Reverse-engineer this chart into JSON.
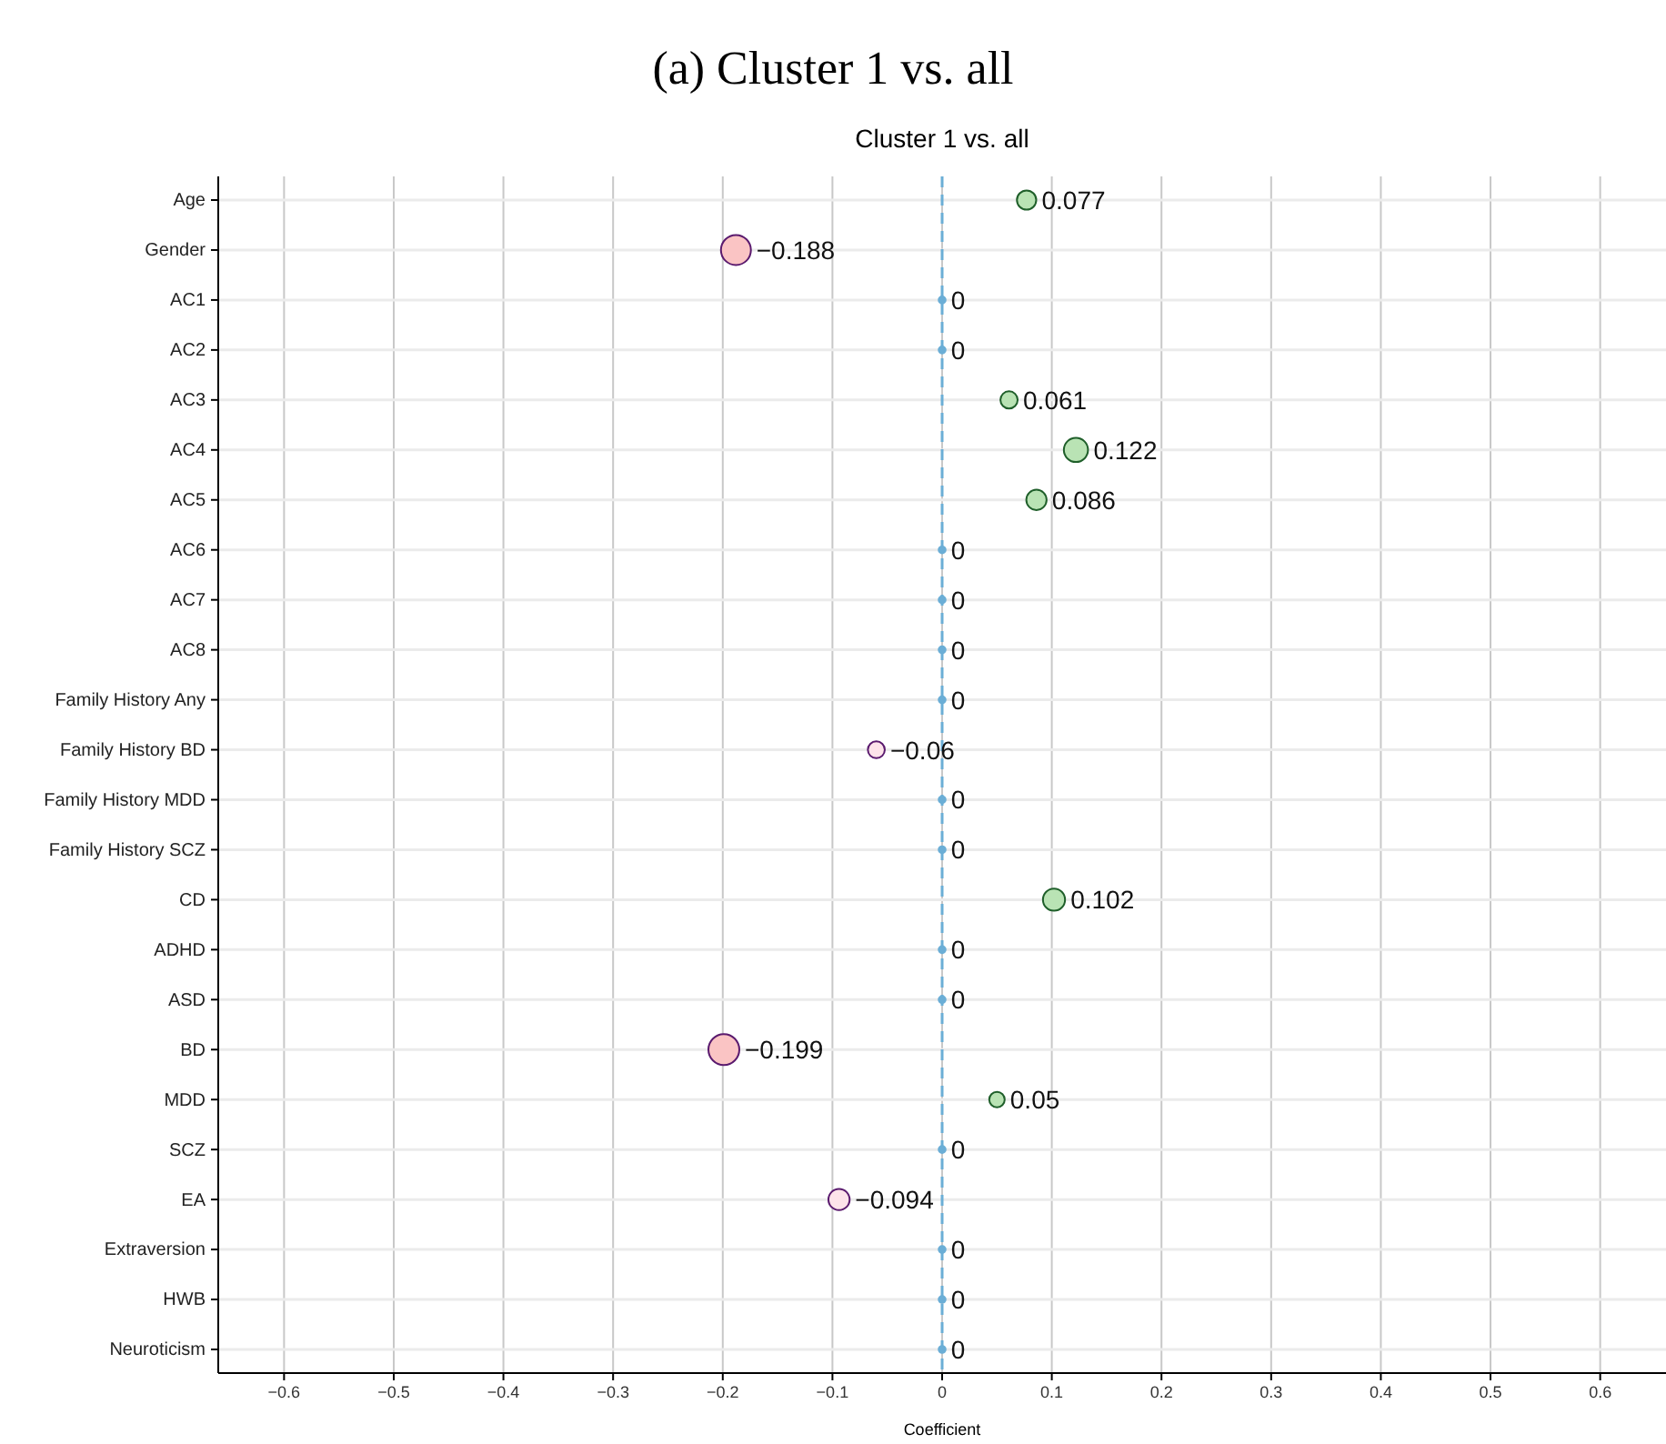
{
  "chart_data": {
    "type": "bubble",
    "orientation": "horizontal",
    "title": "(a) Cluster 1 vs. all",
    "subtitle": "Cluster 1 vs. all",
    "xlabel": "Coefficient",
    "categories": [
      "Age",
      "Gender",
      "AC1",
      "AC2",
      "AC3",
      "AC4",
      "AC5",
      "AC6",
      "AC7",
      "AC8",
      "Family History Any",
      "Family History BD",
      "Family History MDD",
      "Family History SCZ",
      "CD",
      "ADHD",
      "ASD",
      "BD",
      "MDD",
      "SCZ",
      "EA",
      "Extraversion",
      "HWB",
      "Neuroticism"
    ],
    "values": [
      0.077,
      -0.188,
      0,
      0,
      0.061,
      0.122,
      0.086,
      0,
      0,
      0,
      0,
      -0.06,
      0,
      0,
      0.102,
      0,
      0,
      -0.199,
      0.05,
      0,
      -0.094,
      0,
      0,
      0
    ],
    "sizes": [
      0.39,
      0.94,
      0.05,
      0.05,
      0.31,
      0.61,
      0.43,
      0.05,
      0.05,
      0.05,
      0.05,
      0.3,
      0.05,
      0.05,
      0.51,
      0.05,
      0.05,
      1,
      0.25,
      0.05,
      0.47,
      0.05,
      0.05,
      0.05
    ],
    "colors": [
      "#b9e3b4",
      "#fac4c4",
      "#6baed6",
      "#6baed6",
      "#b9e3b4",
      "#b9e3b4",
      "#b9e3b4",
      "#6baed6",
      "#6baed6",
      "#6baed6",
      "#6baed6",
      "#fde3ea",
      "#6baed6",
      "#6baed6",
      "#b9e3b4",
      "#6baed6",
      "#6baed6",
      "#fac4c4",
      "#b9e3b4",
      "#6baed6",
      "#fde3ea",
      "#6baed6",
      "#6baed6",
      "#6baed6"
    ],
    "xlim": [
      -0.66,
      0.66
    ],
    "xticks": [
      -0.6,
      -0.5,
      -0.4,
      -0.3,
      -0.2,
      -0.1,
      0,
      0.1,
      0.2,
      0.3,
      0.4,
      0.5,
      0.6
    ],
    "ref_lines": [
      {
        "axis": "x",
        "value": 0,
        "color": "#6baed6",
        "line_style": "dashed"
      }
    ],
    "grid": true,
    "data_labels": true,
    "marker": "circle"
  }
}
